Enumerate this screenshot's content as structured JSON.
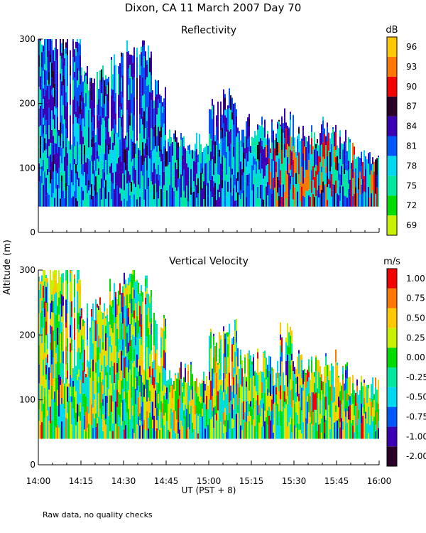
{
  "title": "Dixon, CA 11 March 2007  Day  70",
  "y_axis_label": "Altitude (m)",
  "x_axis_label": "UT  (PST + 8)",
  "footnote": "Raw data, no quality checks",
  "chart_data": [
    {
      "type": "heatmap",
      "title": "Reflectivity",
      "ylabel": "Altitude (m)",
      "ylim": [
        0,
        300
      ],
      "yticks": [
        0,
        100,
        200,
        300
      ],
      "xlim_minutes": [
        0,
        120
      ],
      "x_tick_labels": [
        "14:00",
        "14:15",
        "14:30",
        "14:45",
        "15:00",
        "15:15",
        "15:30",
        "15:45",
        "16:00"
      ],
      "colorbar": {
        "unit": "dB",
        "tick_labels": [
          "96",
          "93",
          "90",
          "87",
          "84",
          "81",
          "78",
          "75",
          "72",
          "69"
        ],
        "colors": [
          "#c8f000",
          "#00dc00",
          "#00e8a0",
          "#00d8f0",
          "#0058f8",
          "#3c00b4",
          "#280028",
          "#f00000",
          "#ff7800",
          "#ffc800"
        ]
      },
      "columns": [
        {
          "t": 0,
          "top": 300,
          "band": "high"
        },
        {
          "t": 5,
          "top": 300,
          "band": "high"
        },
        {
          "t": 10,
          "top": 300,
          "band": "high"
        },
        {
          "t": 15,
          "top": 240,
          "band": "high"
        },
        {
          "t": 20,
          "top": 240,
          "band": "high"
        },
        {
          "t": 25,
          "top": 260,
          "band": "high"
        },
        {
          "t": 30,
          "top": 280,
          "band": "high"
        },
        {
          "t": 35,
          "top": 280,
          "band": "high"
        },
        {
          "t": 40,
          "top": 220,
          "band": "high"
        },
        {
          "t": 45,
          "top": 140,
          "band": "mid"
        },
        {
          "t": 50,
          "top": 140,
          "band": "mid"
        },
        {
          "t": 55,
          "top": 140,
          "band": "mid"
        },
        {
          "t": 60,
          "top": 190,
          "band": "mid"
        },
        {
          "t": 65,
          "top": 210,
          "band": "mid"
        },
        {
          "t": 70,
          "top": 170,
          "band": "mid"
        },
        {
          "t": 75,
          "top": 160,
          "band": "mid"
        },
        {
          "t": 80,
          "top": 160,
          "band": "strong"
        },
        {
          "t": 85,
          "top": 180,
          "band": "strong"
        },
        {
          "t": 90,
          "top": 160,
          "band": "strong"
        },
        {
          "t": 95,
          "top": 150,
          "band": "strong"
        },
        {
          "t": 100,
          "top": 160,
          "band": "strong"
        },
        {
          "t": 105,
          "top": 140,
          "band": "mid"
        },
        {
          "t": 110,
          "top": 120,
          "band": "strong"
        },
        {
          "t": 115,
          "top": 120,
          "band": "strong"
        }
      ],
      "bottom_altitude": 40
    },
    {
      "type": "heatmap",
      "title": "Vertical Velocity",
      "ylabel": "Altitude (m)",
      "ylim": [
        0,
        300
      ],
      "yticks": [
        0,
        100,
        200,
        300
      ],
      "xlim_minutes": [
        0,
        120
      ],
      "x_tick_labels": [
        "14:00",
        "14:15",
        "14:30",
        "14:45",
        "15:00",
        "15:15",
        "15:30",
        "15:45",
        "16:00"
      ],
      "colorbar": {
        "unit": "m/s",
        "tick_labels": [
          "1.00",
          "0.75",
          "0.50",
          "0.25",
          "0.00",
          "-0.25",
          "-0.50",
          "-0.75",
          "-1.00",
          "-2.00"
        ],
        "colors": [
          "#280028",
          "#3c00b4",
          "#0058f8",
          "#00d8f0",
          "#00e8a0",
          "#00dc00",
          "#c8f000",
          "#ffc800",
          "#ff7800",
          "#f00000"
        ]
      },
      "columns": [
        {
          "t": 0,
          "top": 300
        },
        {
          "t": 5,
          "top": 300
        },
        {
          "t": 10,
          "top": 300
        },
        {
          "t": 15,
          "top": 230
        },
        {
          "t": 20,
          "top": 240
        },
        {
          "t": 25,
          "top": 270
        },
        {
          "t": 30,
          "top": 290
        },
        {
          "t": 35,
          "top": 280
        },
        {
          "t": 40,
          "top": 220
        },
        {
          "t": 45,
          "top": 140
        },
        {
          "t": 50,
          "top": 140
        },
        {
          "t": 55,
          "top": 140
        },
        {
          "t": 60,
          "top": 200
        },
        {
          "t": 65,
          "top": 210
        },
        {
          "t": 70,
          "top": 160
        },
        {
          "t": 75,
          "top": 160
        },
        {
          "t": 80,
          "top": 160
        },
        {
          "t": 85,
          "top": 200
        },
        {
          "t": 90,
          "top": 160
        },
        {
          "t": 95,
          "top": 150
        },
        {
          "t": 100,
          "top": 160
        },
        {
          "t": 105,
          "top": 140
        },
        {
          "t": 110,
          "top": 120
        },
        {
          "t": 115,
          "top": 120
        }
      ],
      "bottom_altitude": 40
    }
  ]
}
